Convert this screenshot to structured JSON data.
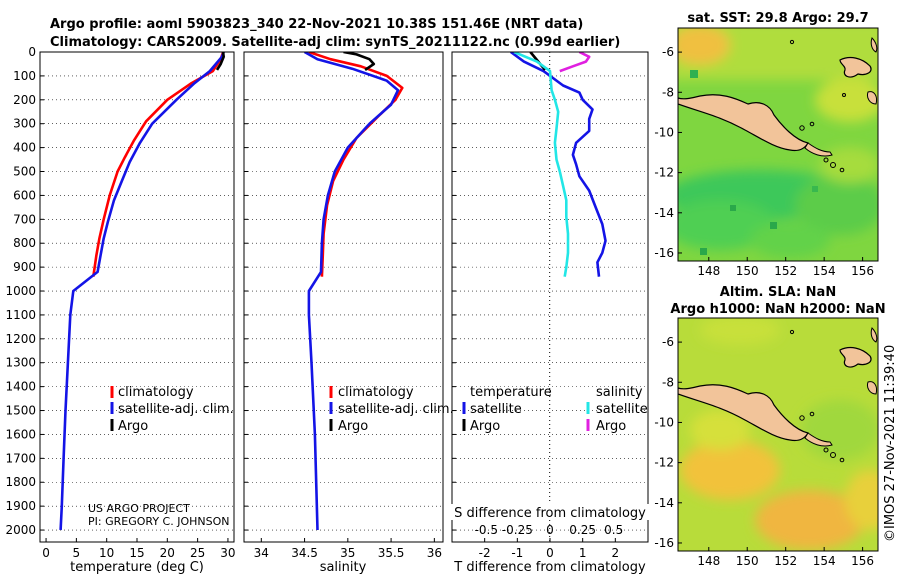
{
  "header": {
    "line1": "Argo profile: aoml 5903823_340 22-Nov-2021 10.38S 151.46E (NRT data)",
    "line2": "Climatology: CARS2009. Satellite-adj clim: synTS_20211122.nc (0.99d earlier)"
  },
  "credits": {
    "project": "US ARGO PROJECT",
    "pi": "PI: GREGORY C. JOHNSON",
    "stamp": "©IMOS 27-Nov-2021 11:39:40"
  },
  "colors": {
    "climatology": "#ff0000",
    "satellite": "#1414e6",
    "argo": "#000000",
    "temp_diff_sat": "#1414e6",
    "sal_diff_sat": "#22e6e6",
    "sal_diff_argo": "#e020e0",
    "land": "#f2c49a"
  },
  "chart_data": [
    {
      "type": "line",
      "name": "temperature-profile",
      "xlabel": "temperature (deg C)",
      "ylabel": "",
      "xlim": [
        -1,
        31
      ],
      "ylim": [
        2050,
        0
      ],
      "xticks": [
        "0",
        "5",
        "10",
        "15",
        "20",
        "25",
        "30"
      ],
      "xtick_values": [
        0,
        5,
        10,
        15,
        20,
        25,
        30
      ],
      "yticks": [
        "0",
        "100",
        "200",
        "300",
        "400",
        "500",
        "600",
        "700",
        "800",
        "900",
        "1000",
        "1100",
        "1200",
        "1300",
        "1400",
        "1500",
        "1600",
        "1700",
        "1800",
        "1900",
        "2000"
      ],
      "ytick_values": [
        0,
        100,
        200,
        300,
        400,
        500,
        600,
        700,
        800,
        900,
        1000,
        1100,
        1200,
        1300,
        1400,
        1500,
        1600,
        1700,
        1800,
        1900,
        2000
      ],
      "legend": [
        "climatology",
        "satellite-adj. clim.",
        "Argo"
      ],
      "series": [
        {
          "name": "climatology",
          "color": "red",
          "points": [
            [
              29.2,
              0
            ],
            [
              28.8,
              30
            ],
            [
              27.5,
              80
            ],
            [
              24,
              130
            ],
            [
              20,
              200
            ],
            [
              16.5,
              290
            ],
            [
              14.5,
              370
            ],
            [
              13,
              440
            ],
            [
              11.8,
              500
            ],
            [
              10.5,
              600
            ],
            [
              9.5,
              700
            ],
            [
              8.8,
              780
            ],
            [
              8.3,
              850
            ],
            [
              7.8,
              940
            ]
          ]
        },
        {
          "name": "satellite-adj. clim.",
          "color": "blue",
          "points": [
            [
              29.3,
              0
            ],
            [
              29,
              20
            ],
            [
              27,
              80
            ],
            [
              24.5,
              130
            ],
            [
              21.5,
              200
            ],
            [
              17.5,
              300
            ],
            [
              15.5,
              380
            ],
            [
              13.8,
              460
            ],
            [
              12.5,
              540
            ],
            [
              11.2,
              620
            ],
            [
              10.2,
              710
            ],
            [
              9.5,
              780
            ],
            [
              9,
              850
            ],
            [
              8.5,
              920
            ],
            [
              4.5,
              1000
            ],
            [
              4,
              1100
            ],
            [
              3.6,
              1300
            ],
            [
              3.2,
              1500
            ],
            [
              2.9,
              1700
            ],
            [
              2.6,
              1900
            ],
            [
              2.4,
              2000
            ]
          ]
        },
        {
          "name": "Argo",
          "color": "black",
          "points": [
            [
              29.2,
              0
            ],
            [
              29.3,
              20
            ],
            [
              28.8,
              50
            ],
            [
              28.2,
              75
            ]
          ]
        }
      ]
    },
    {
      "type": "line",
      "name": "salinity-profile",
      "xlabel": "salinity",
      "xlim": [
        33.8,
        36.1
      ],
      "ylim": [
        2050,
        0
      ],
      "xticks": [
        "34",
        "34.5",
        "35",
        "35.5",
        "36"
      ],
      "xtick_values": [
        34,
        34.5,
        35,
        35.5,
        36
      ],
      "legend": [
        "climatology",
        "satellite-adj. clim.",
        "Argo"
      ],
      "series": [
        {
          "name": "climatology",
          "color": "red",
          "points": [
            [
              34.55,
              0
            ],
            [
              34.8,
              30
            ],
            [
              35.15,
              60
            ],
            [
              35.45,
              100
            ],
            [
              35.63,
              150
            ],
            [
              35.55,
              200
            ],
            [
              35.35,
              270
            ],
            [
              35.1,
              360
            ],
            [
              34.95,
              450
            ],
            [
              34.83,
              540
            ],
            [
              34.76,
              640
            ],
            [
              34.72,
              760
            ],
            [
              34.71,
              860
            ],
            [
              34.7,
              940
            ]
          ]
        },
        {
          "name": "satellite-adj. clim.",
          "color": "blue",
          "points": [
            [
              34.5,
              0
            ],
            [
              34.65,
              30
            ],
            [
              35.05,
              70
            ],
            [
              35.45,
              120
            ],
            [
              35.58,
              160
            ],
            [
              35.5,
              220
            ],
            [
              35.25,
              300
            ],
            [
              35.0,
              400
            ],
            [
              34.85,
              500
            ],
            [
              34.77,
              600
            ],
            [
              34.72,
              700
            ],
            [
              34.7,
              800
            ],
            [
              34.69,
              920
            ],
            [
              34.55,
              1000
            ],
            [
              34.55,
              1100
            ],
            [
              34.58,
              1300
            ],
            [
              34.62,
              1600
            ],
            [
              34.65,
              2000
            ]
          ]
        },
        {
          "name": "Argo",
          "color": "black",
          "points": [
            [
              34.95,
              0
            ],
            [
              35.1,
              10
            ],
            [
              35.25,
              30
            ],
            [
              35.3,
              50
            ],
            [
              35.2,
              75
            ]
          ]
        }
      ]
    },
    {
      "type": "line",
      "name": "difference-profile",
      "xlabel": "T difference from climatology",
      "xlabel_top": "S difference from climatology",
      "xlim": [
        -3,
        3
      ],
      "ylim": [
        2050,
        0
      ],
      "xticks": [
        "-2",
        "-1",
        "0",
        "1",
        "2"
      ],
      "xtick_values": [
        -2,
        -1,
        0,
        1,
        2
      ],
      "sticks": [
        "-0.5",
        "-0.25",
        "0",
        "0.25",
        "0.5"
      ],
      "stick_values": [
        -1.95,
        -1,
        0,
        1,
        1.95
      ],
      "legend_left_title": "temperature",
      "legend_right_title": "salinity",
      "legend_left": [
        "satellite",
        "Argo"
      ],
      "legend_right": [
        "satellite",
        "Argo"
      ],
      "series": [
        {
          "name": "temperature satellite",
          "color": "blue",
          "points": [
            [
              -1.2,
              0
            ],
            [
              -0.8,
              40
            ],
            [
              -0.2,
              80
            ],
            [
              0.4,
              140
            ],
            [
              0.9,
              170
            ],
            [
              1.0,
              200
            ],
            [
              1.3,
              240
            ],
            [
              1.2,
              280
            ],
            [
              1.2,
              330
            ],
            [
              0.8,
              380
            ],
            [
              0.7,
              430
            ],
            [
              0.8,
              470
            ],
            [
              0.9,
              520
            ],
            [
              1.2,
              580
            ],
            [
              1.4,
              650
            ],
            [
              1.6,
              720
            ],
            [
              1.7,
              790
            ],
            [
              1.6,
              840
            ],
            [
              1.45,
              880
            ],
            [
              1.5,
              940
            ]
          ]
        },
        {
          "name": "temperature Argo",
          "color": "black",
          "points": [
            [
              -0.6,
              0
            ],
            [
              -0.45,
              25
            ],
            [
              -0.3,
              50
            ],
            [
              -0.15,
              75
            ]
          ]
        },
        {
          "name": "salinity satellite",
          "color": "cyan",
          "points": [
            [
              -1.1,
              0
            ],
            [
              -0.4,
              40
            ],
            [
              0,
              80
            ],
            [
              0.05,
              160
            ],
            [
              0.15,
              200
            ],
            [
              0.25,
              250
            ],
            [
              0.2,
              320
            ],
            [
              0.15,
              380
            ],
            [
              0.2,
              450
            ],
            [
              0.3,
              500
            ],
            [
              0.4,
              560
            ],
            [
              0.5,
              620
            ],
            [
              0.5,
              690
            ],
            [
              0.55,
              760
            ],
            [
              0.55,
              840
            ],
            [
              0.5,
              900
            ],
            [
              0.45,
              940
            ]
          ]
        },
        {
          "name": "salinity Argo",
          "color": "magenta",
          "points": [
            [
              0.9,
              0
            ],
            [
              1.2,
              20
            ],
            [
              1.1,
              40
            ],
            [
              0.7,
              60
            ],
            [
              0.3,
              80
            ]
          ]
        }
      ]
    },
    {
      "type": "heatmap",
      "name": "sst-map",
      "title": "sat. SST: 29.8  Argo: 29.7",
      "xlim": [
        146.4,
        156.8
      ],
      "ylim": [
        -16.4,
        -4.8
      ],
      "xticks": [
        "148",
        "150",
        "152",
        "154",
        "156"
      ],
      "xtick_values": [
        148,
        150,
        152,
        154,
        156
      ],
      "yticks": [
        "-6",
        "-8",
        "-10",
        "-12",
        "-14",
        "-16"
      ],
      "ytick_values": [
        -6,
        -8,
        -10,
        -12,
        -14,
        -16
      ]
    },
    {
      "type": "heatmap",
      "name": "sla-map",
      "title": "Altim. SLA: NaN",
      "subtitle": "Argo h1000: NaN  h2000: NaN",
      "xlim": [
        146.4,
        156.8
      ],
      "ylim": [
        -16.4,
        -4.8
      ],
      "xticks": [
        "148",
        "150",
        "152",
        "154",
        "156"
      ],
      "xtick_values": [
        148,
        150,
        152,
        154,
        156
      ],
      "yticks": [
        "-6",
        "-8",
        "-10",
        "-12",
        "-14",
        "-16"
      ],
      "ytick_values": [
        -6,
        -8,
        -10,
        -12,
        -14,
        -16
      ]
    }
  ]
}
